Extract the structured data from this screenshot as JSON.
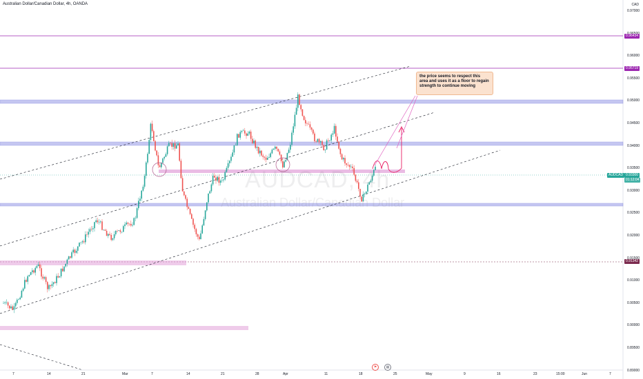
{
  "header": {
    "title": "Australian Dollar/Canadian Dollar, 4h, OANDA"
  },
  "watermark": {
    "symbol": "AUDCAD, 4h",
    "name": "Australian Dollar/Canadian Dollar"
  },
  "axis": {
    "currency": "CAD",
    "y_ticks": [
      "0.97000",
      "0.96500",
      "0.96000",
      "0.95500",
      "0.95000",
      "0.94500",
      "0.94000",
      "0.93500",
      "0.93000",
      "0.92500",
      "0.92000",
      "0.91500",
      "0.91000",
      "0.90500",
      "0.90000",
      "0.89500",
      "0.89000"
    ],
    "x_ticks": [
      "7",
      "14",
      "21",
      "Mar",
      "7",
      "14",
      "21",
      "28",
      "Apr",
      "11",
      "18",
      "25",
      "May",
      "9",
      "16",
      "23",
      "15:00",
      "Jun",
      "7"
    ]
  },
  "price_tags": {
    "top_level": "0.96434",
    "upper_level": "0.95719",
    "symbol_tag": "AUDCAD",
    "current_price": "0.93300",
    "countdown": "01:12:04",
    "lower_level": "0.91342"
  },
  "note": {
    "text": "the price seems to respect this area and uses it as a floor to regain strength to continue moving"
  },
  "colors": {
    "bull": "#26a69a",
    "bear": "#ef5350",
    "level_line": "#9c27b0",
    "zone": "#9598e6",
    "pink_zone": "#e1a0d8",
    "note_bg": "#fbe2cf"
  },
  "icons": {
    "event_1": "flag-icon",
    "event_2": "calendar-icon"
  }
}
